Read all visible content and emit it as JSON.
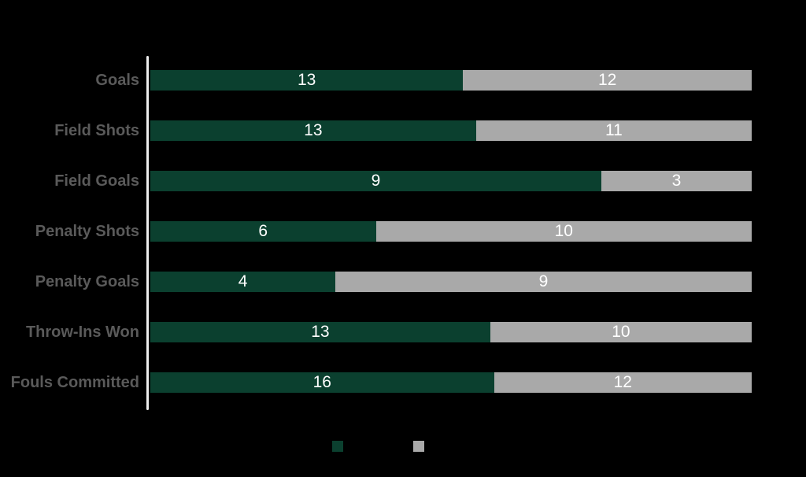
{
  "background": "#000000",
  "colors": {
    "series_green": "#0b402f",
    "series_gray": "#a9a9a9",
    "category_label": "#5a5a5a",
    "value_label": "#ffffff",
    "axis_line": "#ededed"
  },
  "chart_data": {
    "type": "bar",
    "orientation": "horizontal",
    "stacking": "100_percent_stacked",
    "title": "",
    "xlabel": "",
    "ylabel": "",
    "gridlines": false,
    "categories": [
      "Goals",
      "Field Shots",
      "Field Goals",
      "Penalty Shots",
      "Penalty Goals",
      "Throw-Ins Won",
      "Fouls Committed"
    ],
    "series": [
      {
        "name": "green",
        "color": "#0b402f",
        "values": [
          13,
          13,
          9,
          6,
          4,
          13,
          16
        ]
      },
      {
        "name": "gray",
        "color": "#a9a9a9",
        "values": [
          12,
          11,
          3,
          10,
          9,
          10,
          12
        ]
      }
    ],
    "value_labels_shown": true,
    "legend": {
      "position": "bottom",
      "items": [
        {
          "swatch_color": "#0b402f",
          "label": ""
        },
        {
          "swatch_color": "#a9a9a9",
          "label": ""
        }
      ]
    }
  }
}
